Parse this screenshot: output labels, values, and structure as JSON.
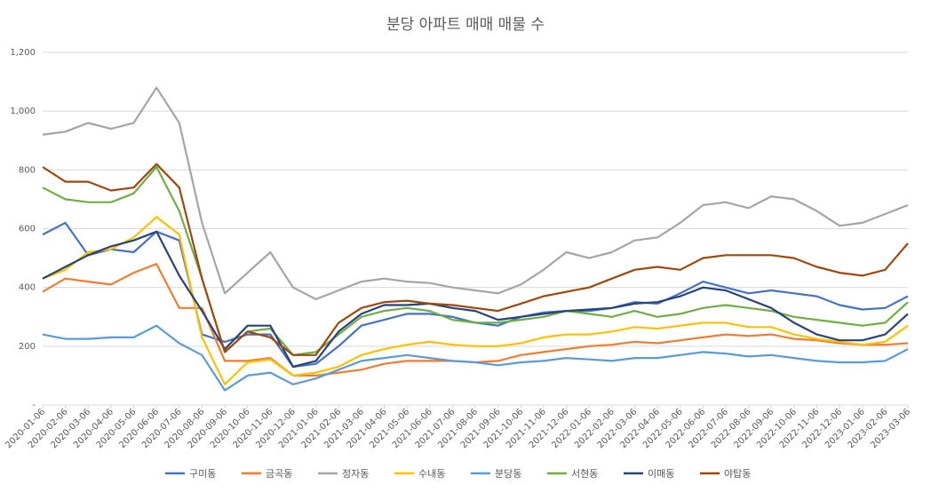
{
  "chart_data": {
    "type": "line",
    "title": "분당 아파트 매매 매물 수",
    "xlabel": "",
    "ylabel": "",
    "ylim": [
      0,
      1200
    ],
    "yticks": [
      0,
      200,
      400,
      600,
      800,
      1000,
      1200
    ],
    "ytick_labels": [
      "-",
      "200",
      "400",
      "600",
      "800",
      "1,000",
      "1,200"
    ],
    "grid": "horizontal",
    "legend_position": "bottom",
    "x": [
      "2020-01-06",
      "2020-02-06",
      "2020-03-06",
      "2020-04-06",
      "2020-05-06",
      "2020-06-06",
      "2020-07-06",
      "2020-08-06",
      "2020-09-06",
      "2020-10-06",
      "2020-11-06",
      "2020-12-06",
      "2021-01-06",
      "2021-02-06",
      "2021-03-06",
      "2021-04-06",
      "2021-05-06",
      "2021-06-06",
      "2021-07-06",
      "2021-08-06",
      "2021-09-06",
      "2021-10-06",
      "2021-11-06",
      "2021-12-06",
      "2022-01-06",
      "2022-02-06",
      "2022-03-06",
      "2022-04-06",
      "2022-05-06",
      "2022-06-06",
      "2022-07-06",
      "2022-08-06",
      "2022-09-06",
      "2022-10-06",
      "2022-11-06",
      "2022-12-06",
      "2023-01-06",
      "2023-02-06",
      "2023-03-06"
    ],
    "series": [
      {
        "name": "구미동",
        "color": "#4472c4",
        "values": [
          580,
          620,
          510,
          530,
          520,
          590,
          560,
          240,
          215,
          240,
          240,
          130,
          140,
          200,
          270,
          290,
          310,
          310,
          300,
          280,
          270,
          300,
          315,
          320,
          320,
          330,
          350,
          345,
          380,
          420,
          400,
          380,
          390,
          380,
          370,
          340,
          325,
          330,
          370
        ]
      },
      {
        "name": "금곡동",
        "color": "#ed7d31",
        "values": [
          385,
          430,
          420,
          410,
          450,
          480,
          330,
          330,
          150,
          150,
          160,
          100,
          100,
          110,
          120,
          140,
          150,
          150,
          150,
          145,
          150,
          170,
          180,
          190,
          200,
          205,
          215,
          210,
          220,
          230,
          240,
          235,
          240,
          225,
          220,
          210,
          205,
          205,
          210
        ]
      },
      {
        "name": "정자동",
        "color": "#a5a5a5",
        "values": [
          920,
          930,
          960,
          940,
          960,
          1080,
          960,
          620,
          380,
          450,
          520,
          400,
          360,
          390,
          420,
          430,
          420,
          415,
          400,
          390,
          380,
          410,
          460,
          520,
          500,
          520,
          560,
          570,
          620,
          680,
          690,
          670,
          710,
          700,
          660,
          610,
          620,
          650,
          680
        ]
      },
      {
        "name": "수내동",
        "color": "#ffc000",
        "values": [
          430,
          460,
          520,
          530,
          570,
          640,
          580,
          230,
          70,
          145,
          155,
          100,
          110,
          130,
          170,
          190,
          205,
          215,
          205,
          200,
          200,
          210,
          230,
          240,
          240,
          250,
          265,
          260,
          270,
          280,
          280,
          265,
          265,
          240,
          225,
          215,
          205,
          215,
          270
        ]
      },
      {
        "name": "분당동",
        "color": "#5b9bd5",
        "values": [
          240,
          225,
          225,
          230,
          230,
          270,
          210,
          170,
          50,
          100,
          110,
          70,
          90,
          120,
          150,
          160,
          170,
          160,
          150,
          145,
          135,
          145,
          150,
          160,
          155,
          150,
          160,
          160,
          170,
          180,
          175,
          165,
          170,
          160,
          150,
          145,
          145,
          150,
          190
        ]
      },
      {
        "name": "서현동",
        "color": "#70ad47",
        "values": [
          740,
          700,
          690,
          690,
          720,
          810,
          660,
          430,
          180,
          250,
          260,
          170,
          180,
          240,
          300,
          320,
          330,
          320,
          290,
          280,
          280,
          290,
          300,
          320,
          310,
          300,
          320,
          300,
          310,
          330,
          340,
          330,
          320,
          300,
          290,
          280,
          270,
          280,
          350
        ]
      },
      {
        "name": "이매동",
        "color": "#264478",
        "values": [
          430,
          470,
          510,
          540,
          560,
          590,
          440,
          320,
          190,
          270,
          270,
          130,
          150,
          250,
          310,
          340,
          340,
          345,
          330,
          320,
          290,
          300,
          310,
          320,
          325,
          330,
          345,
          350,
          370,
          400,
          390,
          360,
          330,
          280,
          240,
          220,
          220,
          240,
          310
        ]
      },
      {
        "name": "야탑동",
        "color": "#9e480e",
        "values": [
          810,
          760,
          760,
          730,
          740,
          820,
          740,
          430,
          180,
          250,
          230,
          170,
          170,
          280,
          330,
          350,
          355,
          345,
          340,
          330,
          320,
          345,
          370,
          385,
          400,
          430,
          460,
          470,
          460,
          500,
          510,
          510,
          510,
          500,
          470,
          450,
          440,
          460,
          550
        ]
      }
    ]
  }
}
